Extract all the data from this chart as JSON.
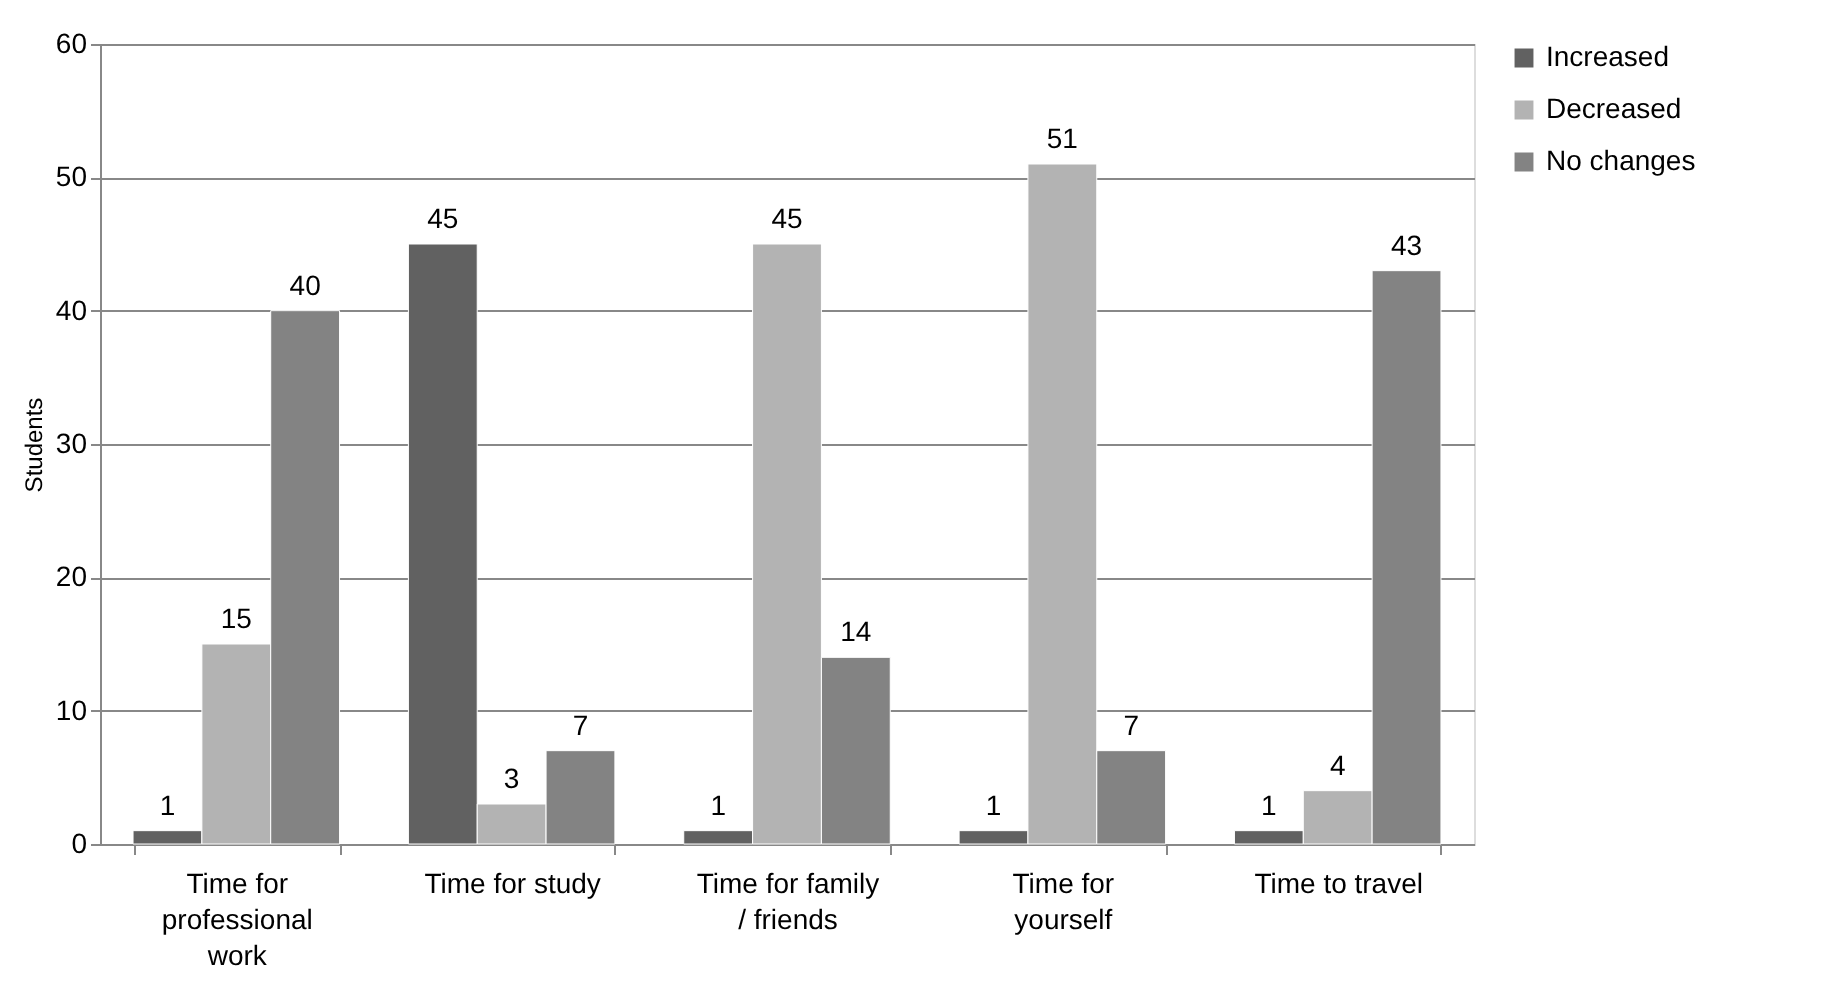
{
  "chart_data": {
    "type": "bar",
    "ylabel": "Students",
    "categories": [
      "Time for professional work",
      "Time for study",
      "Time for family / friends",
      "Time for yourself",
      "Time to travel"
    ],
    "series": [
      {
        "name": "Increased",
        "color": "#616161",
        "values": [
          1,
          45,
          1,
          1,
          1
        ]
      },
      {
        "name": "Decreased",
        "color": "#b3b3b3",
        "values": [
          15,
          3,
          45,
          51,
          4
        ]
      },
      {
        "name": "No changes",
        "color": "#838383",
        "values": [
          40,
          7,
          14,
          7,
          43
        ]
      }
    ],
    "ylim": [
      0,
      60
    ],
    "yticks": [
      0,
      10,
      20,
      30,
      40,
      50,
      60
    ],
    "grid": "y",
    "legend": "right",
    "data_labels": true
  }
}
